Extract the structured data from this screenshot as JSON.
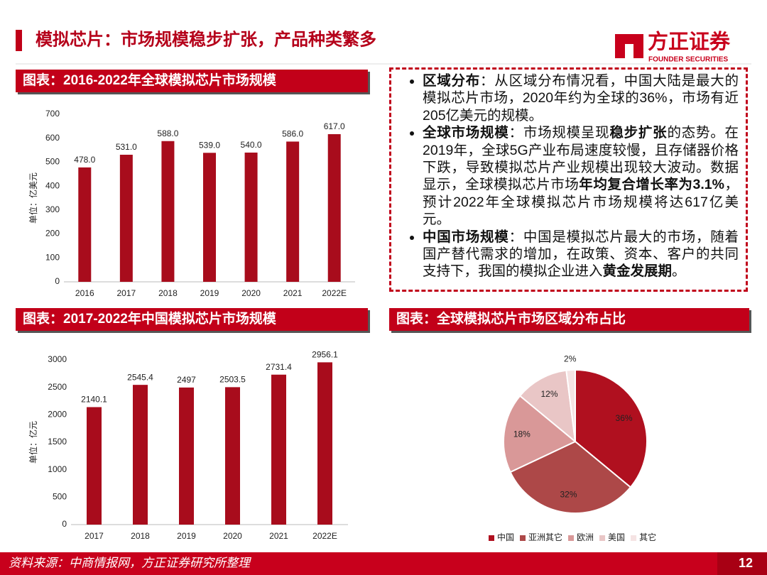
{
  "header": {
    "title": "模拟芯片：市场规模稳步扩张，产品种类繁多",
    "logo_name": "方正证券",
    "logo_sub": "FOUNDER SECURITIES"
  },
  "text_panel": {
    "bullets": [
      [
        {
          "text": "区域分布",
          "bold": true
        },
        {
          "text": "：从区域分布情况看，中国大陆是最大的模拟芯片市场，2020年约为全球的36%，市场有近205亿美元的规模。",
          "bold": false
        }
      ],
      [
        {
          "text": "全球市场规模",
          "bold": true
        },
        {
          "text": "：市场规模呈现",
          "bold": false
        },
        {
          "text": "稳步扩张",
          "bold": true
        },
        {
          "text": "的态势。在2019年，全球5G产业布局速度较慢，且存储器价格下跌，导致模拟芯片产业规模出现较大波动。数据显示，全球模拟芯片市场",
          "bold": false
        },
        {
          "text": "年均复合增长率为3.1%",
          "bold": true
        },
        {
          "text": "，预计2022年全球模拟芯片市场规模将达617亿美元。",
          "bold": false
        }
      ],
      [
        {
          "text": "中国市场规模",
          "bold": true
        },
        {
          "text": "：中国是模拟芯片最大的市场，随着国产替代需求的增加，在政策、资本、客户的共同支持下，我国的模拟企业进入",
          "bold": false
        },
        {
          "text": "黄金发展期",
          "bold": true
        },
        {
          "text": "。",
          "bold": false
        }
      ]
    ]
  },
  "chart_data": [
    {
      "type": "bar",
      "title": "图表：2016-2022年全球模拟芯片市场规模",
      "y_label": "单位：亿美元",
      "categories": [
        "2016",
        "2017",
        "2018",
        "2019",
        "2020",
        "2021",
        "2022E"
      ],
      "values": [
        478,
        531,
        588,
        539,
        540,
        586,
        617
      ],
      "value_labels": [
        "478.0",
        "531.0",
        "588.0",
        "539.0",
        "540.0",
        "586.0",
        "617.0"
      ],
      "color": "#a80c1c",
      "ylim": [
        0,
        700
      ],
      "yticks": [
        0,
        100,
        200,
        300,
        400,
        500,
        600,
        700
      ]
    },
    {
      "type": "bar",
      "title": "图表：2017-2022年中国模拟芯片市场规模",
      "y_label": "单位：亿元",
      "categories": [
        "2017",
        "2018",
        "2019",
        "2020",
        "2021",
        "2022E"
      ],
      "values": [
        2140.1,
        2545.4,
        2497,
        2503.5,
        2731.4,
        2956.1
      ],
      "color": "#a80c1c",
      "ylim": [
        0,
        3000
      ],
      "yticks": [
        0,
        500,
        1000,
        1500,
        2000,
        2500,
        3000
      ]
    },
    {
      "type": "pie",
      "title": "图表：全球模拟芯片市场区域分布占比",
      "categories": [
        "中国",
        "亚洲其它",
        "欧洲",
        "美国",
        "其它"
      ],
      "values": [
        36,
        32,
        18,
        12,
        2
      ],
      "value_labels": [
        "36%",
        "32%",
        "18%",
        "12%",
        "2%"
      ],
      "colors": [
        "#b0101f",
        "#ad4848",
        "#d99898",
        "#e9c6c6",
        "#f5e3e3"
      ]
    }
  ],
  "footer": {
    "source": "资料来源：中商情报网，方正证券研究所整理",
    "page": "12"
  }
}
